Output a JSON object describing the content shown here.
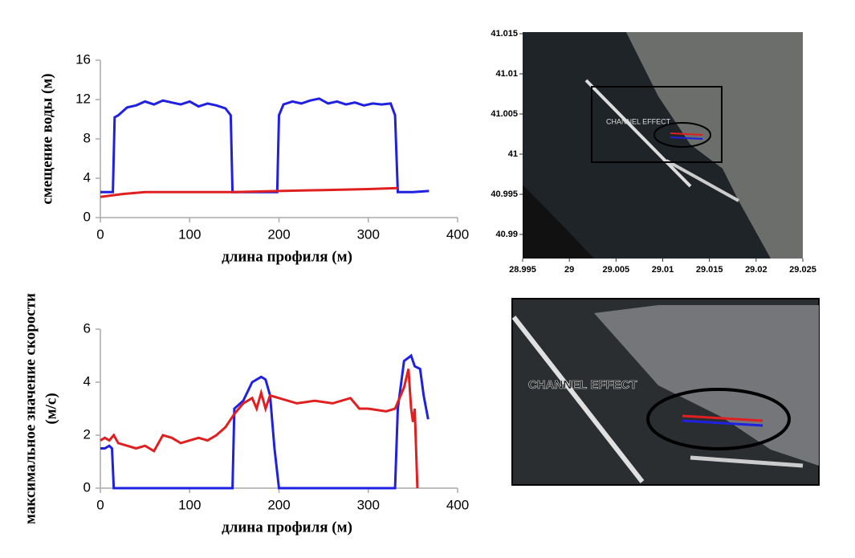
{
  "chart_data": [
    {
      "type": "line",
      "ylabel": [
        "смещение воды (м)"
      ],
      "xlabel": "длина профиля (м)",
      "xlim": [
        0,
        400
      ],
      "xticks": [
        0,
        100,
        200,
        300,
        400
      ],
      "ylim": [
        0,
        16
      ],
      "yticks": [
        0,
        4,
        8,
        12,
        16
      ],
      "series": [
        {
          "name": "blue",
          "color": "#2020e0",
          "x": [
            0,
            14,
            16,
            20,
            30,
            40,
            50,
            60,
            70,
            80,
            90,
            100,
            110,
            120,
            130,
            140,
            146,
            148,
            198,
            200,
            205,
            215,
            225,
            235,
            245,
            255,
            265,
            275,
            285,
            295,
            305,
            315,
            325,
            330,
            333,
            350,
            368
          ],
          "values": [
            2.6,
            2.6,
            10.2,
            10.4,
            11.2,
            11.4,
            11.8,
            11.5,
            11.9,
            11.7,
            11.5,
            11.8,
            11.3,
            11.6,
            11.4,
            11.1,
            10.4,
            2.6,
            2.6,
            10.4,
            11.5,
            11.8,
            11.6,
            11.9,
            12.1,
            11.6,
            11.8,
            11.5,
            11.7,
            11.4,
            11.6,
            11.5,
            11.6,
            10.4,
            2.6,
            2.6,
            2.7
          ]
        },
        {
          "name": "red",
          "color": "#e02020",
          "x": [
            0,
            25,
            50,
            100,
            150,
            200,
            250,
            300,
            333
          ],
          "values": [
            2.1,
            2.4,
            2.6,
            2.6,
            2.6,
            2.7,
            2.8,
            2.9,
            3.0
          ]
        }
      ]
    },
    {
      "type": "line",
      "ylabel": [
        "максимальное значение скорости",
        "(м/с)"
      ],
      "xlabel": "длина профиля (м)",
      "xlim": [
        0,
        400
      ],
      "xticks": [
        0,
        100,
        200,
        300,
        400
      ],
      "ylim": [
        0,
        6
      ],
      "yticks": [
        0,
        2,
        4,
        6
      ],
      "series": [
        {
          "name": "blue",
          "color": "#2020e0",
          "x": [
            0,
            5,
            10,
            13,
            15,
            148,
            150,
            160,
            170,
            180,
            185,
            190,
            195,
            200,
            330,
            333,
            340,
            348,
            352,
            358,
            362,
            367
          ],
          "values": [
            1.5,
            1.5,
            1.6,
            1.5,
            0,
            0,
            3.0,
            3.3,
            4.0,
            4.2,
            4.1,
            3.5,
            1.5,
            0,
            0,
            3.0,
            4.8,
            5.0,
            4.6,
            4.5,
            3.5,
            2.6
          ]
        },
        {
          "name": "red",
          "color": "#e02020",
          "x": [
            0,
            5,
            10,
            15,
            20,
            30,
            40,
            50,
            60,
            70,
            80,
            90,
            100,
            110,
            120,
            130,
            140,
            150,
            160,
            170,
            175,
            180,
            185,
            190,
            200,
            220,
            240,
            260,
            280,
            290,
            300,
            320,
            330,
            340,
            345,
            348,
            350,
            352,
            355
          ],
          "values": [
            1.8,
            1.9,
            1.8,
            2.0,
            1.7,
            1.6,
            1.5,
            1.6,
            1.4,
            2.0,
            1.9,
            1.7,
            1.8,
            1.9,
            1.8,
            2.0,
            2.3,
            2.8,
            3.2,
            3.4,
            3.0,
            3.6,
            3.0,
            3.5,
            3.4,
            3.2,
            3.3,
            3.2,
            3.4,
            3.0,
            3.0,
            2.9,
            3.0,
            3.8,
            4.5,
            3.0,
            2.5,
            3.0,
            0
          ]
        }
      ]
    },
    {
      "type": "map",
      "annotation": "CHANNEL EFFECT",
      "xlim": [
        28.995,
        29.025
      ],
      "xticks": [
        28.995,
        29,
        29.005,
        29.01,
        29.015,
        29.02,
        29.025
      ],
      "ylim": [
        40.987,
        41.015
      ],
      "yticks": [
        41.015,
        41.01,
        41.005,
        41,
        40.995,
        40.99
      ]
    },
    {
      "type": "inset",
      "annotation": "CHANNEL EFFECT"
    }
  ]
}
